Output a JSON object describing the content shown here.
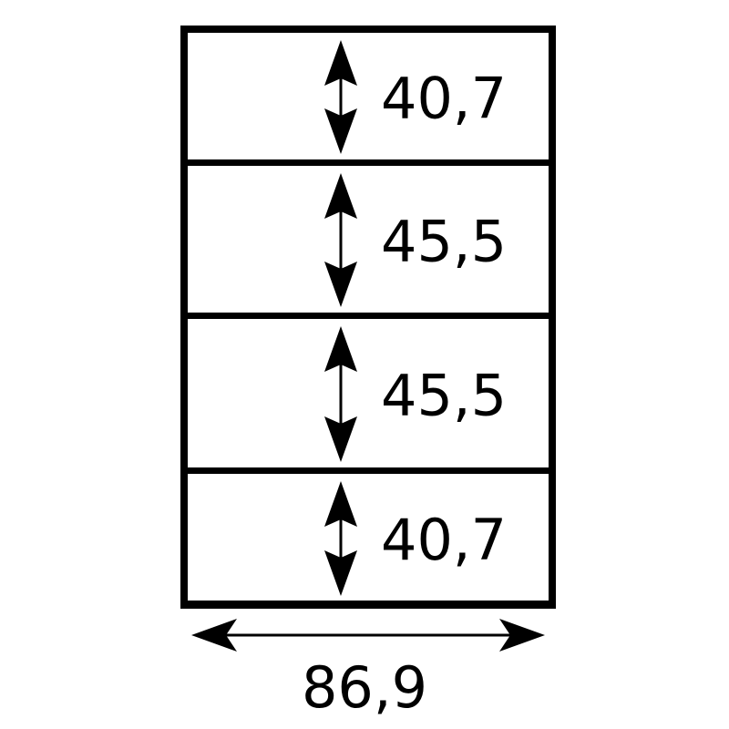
{
  "diagram": {
    "sections": [
      {
        "height_label": "40,7"
      },
      {
        "height_label": "45,5"
      },
      {
        "height_label": "45,5"
      },
      {
        "height_label": "40,7"
      }
    ],
    "width_label": "86,9",
    "colors": {
      "stroke": "#000000",
      "background": "#ffffff"
    }
  }
}
